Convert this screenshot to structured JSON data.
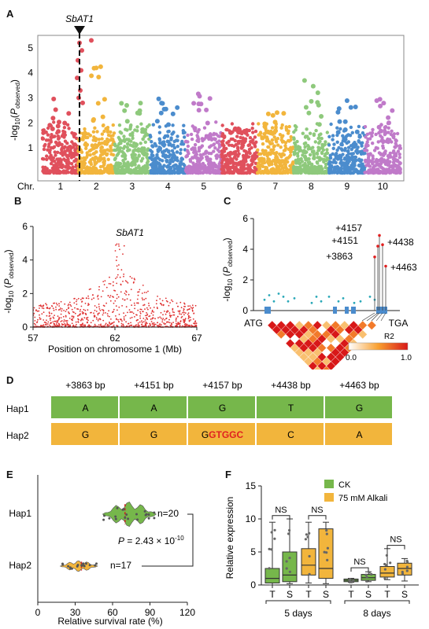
{
  "panels": {
    "A": {
      "label": "A",
      "gene": "SbAT1",
      "ylabel": "-log10(P observed)",
      "yticks": [
        1,
        2,
        3,
        4,
        5
      ],
      "chr_label": "Chr.",
      "chromosomes": [
        "1",
        "2",
        "3",
        "4",
        "5",
        "6",
        "7",
        "8",
        "9",
        "10"
      ],
      "colors": [
        "#e0505c",
        "#f2b53c",
        "#8ec97c",
        "#4b8ccd",
        "#c07ac9",
        "#e0505c",
        "#f2b53c",
        "#8ec97c",
        "#4b8ccd",
        "#c07ac9"
      ],
      "chart_data": {
        "type": "scatter",
        "title": "",
        "xlabel": "Chr.",
        "ylabel": "-log10(P observed)",
        "ylim": [
          0,
          5.5
        ],
        "categories": [
          "1",
          "2",
          "3",
          "4",
          "5",
          "6",
          "7",
          "8",
          "9",
          "10"
        ],
        "peak_height": [
          3.0,
          4.3,
          2.9,
          3.0,
          3.2,
          1.8,
          2.5,
          3.8,
          2.9,
          3.2
        ],
        "lead_signal": {
          "chromosome": "1",
          "gene": "SbAT1",
          "max_y": 5.2
        }
      }
    },
    "B": {
      "label": "B",
      "gene": "SbAT1",
      "ylabel": "-log10 (P observed)",
      "xlabel": "Position on chromosome 1 (Mb)",
      "xticks": [
        "57",
        "62",
        "67"
      ],
      "yticks": [
        "0",
        "2",
        "4",
        "6"
      ],
      "chart_data": {
        "type": "scatter",
        "xlim": [
          57,
          67
        ],
        "ylim": [
          0,
          6
        ],
        "peak": {
          "x": 62.3,
          "y": 5.1
        },
        "color": "#e03030"
      }
    },
    "C": {
      "label": "C",
      "ylabel": "-log10 (P observed)",
      "yticks": [
        "0",
        "2",
        "4",
        "6"
      ],
      "start_label": "ATG",
      "end_label": "TGA",
      "snp_labels": [
        "+4157",
        "+4151",
        "+4438",
        "+3863",
        "+4463"
      ],
      "legend_title": "R2",
      "legend_min": "0.0",
      "legend_max": "1.0",
      "chart_data": {
        "type": "scatter",
        "ylim": [
          0,
          6
        ],
        "highlighted": [
          {
            "name": "+4157",
            "y": 4.9
          },
          {
            "name": "+4151",
            "y": 4.2
          },
          {
            "name": "+4438",
            "y": 4.3
          },
          {
            "name": "+3863",
            "y": 3.5
          },
          {
            "name": "+4463",
            "y": 2.9
          }
        ]
      }
    },
    "D": {
      "label": "D",
      "columns": [
        "+3863 bp",
        "+4151 bp",
        "+4157 bp",
        "+4438 bp",
        "+4463 bp"
      ],
      "rows": [
        {
          "name": "Hap1",
          "cells": [
            "A",
            "A",
            "G",
            "T",
            "G"
          ]
        },
        {
          "name": "Hap2",
          "cells": [
            "G",
            "G",
            "G",
            "C",
            "A"
          ]
        }
      ],
      "hap2_insert": "GTGGC",
      "colors": {
        "hap1": "#76b74b",
        "hap2": "#f2b53c",
        "insert": "#e02020"
      }
    },
    "E": {
      "label": "E",
      "xlabel": "Relative survival rate (%)",
      "xticks": [
        "0",
        "30",
        "60",
        "90",
        "120"
      ],
      "groups": [
        "Hap1",
        "Hap2"
      ],
      "n_labels": [
        "n=20",
        "n=17"
      ],
      "pvalue_text": "P = 2.43 × 10",
      "pvalue_exp": "-10",
      "chart_data": {
        "type": "violin",
        "xlim": [
          0,
          120
        ],
        "groups": [
          {
            "name": "Hap1",
            "n": 20,
            "median": 70,
            "range": [
              52,
              95
            ],
            "color": "#76b74b"
          },
          {
            "name": "Hap2",
            "n": 17,
            "median": 35,
            "range": [
              18,
              48
            ],
            "color": "#f2b53c"
          }
        ],
        "p_value": "2.43 × 10^-10"
      }
    },
    "F": {
      "label": "F",
      "ylabel": "Relative expression",
      "yticks": [
        "0",
        "5",
        "10",
        "15"
      ],
      "legend": [
        "CK",
        "75 mM Alkali"
      ],
      "ns": "NS",
      "tick_labels": [
        "T",
        "S",
        "T",
        "S",
        "T",
        "S",
        "T",
        "S"
      ],
      "time_labels": [
        "5 days",
        "8 days"
      ],
      "chart_data": {
        "type": "box",
        "ylim": [
          0,
          15
        ],
        "boxes": [
          {
            "time": "5 days",
            "hap": "T",
            "group": "CK",
            "q1": 0.3,
            "median": 1.0,
            "q3": 2.5,
            "min": 0,
            "max": 9.5
          },
          {
            "time": "5 days",
            "hap": "S",
            "group": "CK",
            "q1": 0.5,
            "median": 1.5,
            "q3": 5.0,
            "min": 0.2,
            "max": 10.0
          },
          {
            "time": "5 days",
            "hap": "T",
            "group": "75 mM Alkali",
            "q1": 1.5,
            "median": 3.0,
            "q3": 5.5,
            "min": 0.3,
            "max": 9.5
          },
          {
            "time": "5 days",
            "hap": "S",
            "group": "75 mM Alkali",
            "q1": 1.0,
            "median": 2.5,
            "q3": 8.5,
            "min": 0.2,
            "max": 9.5
          },
          {
            "time": "8 days",
            "hap": "T",
            "group": "CK",
            "q1": 0.5,
            "median": 0.7,
            "q3": 0.9,
            "min": 0.4,
            "max": 1.0
          },
          {
            "time": "8 days",
            "hap": "S",
            "group": "CK",
            "q1": 0.7,
            "median": 1.1,
            "q3": 1.6,
            "min": 0.5,
            "max": 2.0
          },
          {
            "time": "8 days",
            "hap": "T",
            "group": "75 mM Alkali",
            "q1": 1.2,
            "median": 1.8,
            "q3": 2.8,
            "min": 0.8,
            "max": 5.5
          },
          {
            "time": "8 days",
            "hap": "S",
            "group": "75 mM Alkali",
            "q1": 1.5,
            "median": 2.5,
            "q3": 3.3,
            "min": 0.6,
            "max": 4.0
          }
        ],
        "colors": {
          "CK": "#76b74b",
          "75 mM Alkali": "#f2b53c"
        }
      }
    }
  }
}
